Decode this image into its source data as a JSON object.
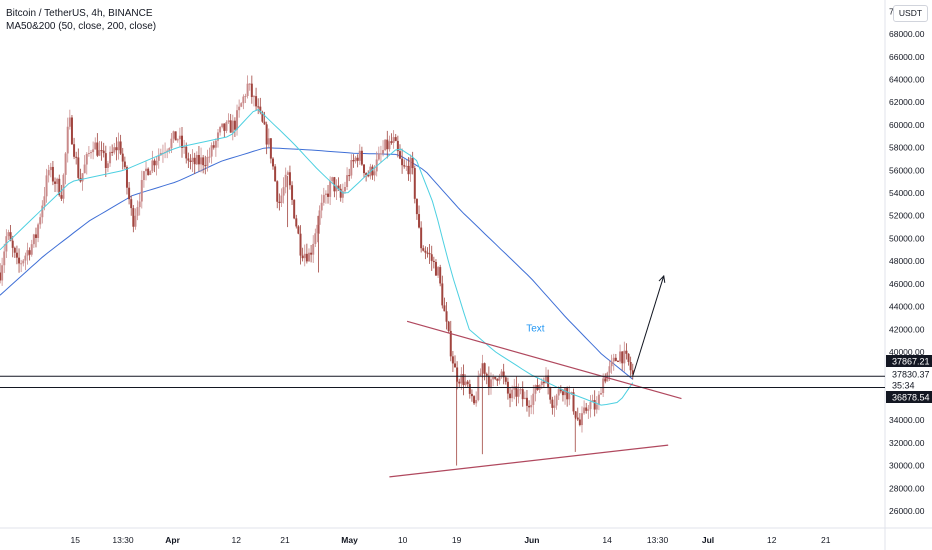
{
  "header": {
    "symbol_line": "Bitcoin / TetherUS, 4h, BINANCE",
    "indicator_line": "MA50&200 (50, close, 200, close)"
  },
  "unit_button": "USDT",
  "chart_data": {
    "type": "candlestick",
    "title": "Bitcoin / TetherUS, 4h, BINANCE",
    "indicator": "MA50&200 (50, close, 200, close)",
    "ylim": [
      24500,
      71000
    ],
    "y_ticks": [
      26000,
      28000,
      30000,
      32000,
      34000,
      36000,
      38000,
      40000,
      42000,
      44000,
      46000,
      48000,
      50000,
      52000,
      54000,
      56000,
      58000,
      60000,
      62000,
      64000,
      66000,
      68000,
      70000
    ],
    "y_tick_labels": [
      "26000.00",
      "28000.00",
      "30000.00",
      "32000.00",
      "34000.00",
      "36000.00",
      "38000.00",
      "40000.00",
      "42000.00",
      "44000.00",
      "46000.00",
      "48000.00",
      "50000.00",
      "52000.00",
      "54000.00",
      "56000.00",
      "58000.00",
      "60000.00",
      "62000.00",
      "64000.00",
      "66000.00",
      "68000.00",
      "70000.00"
    ],
    "x_ticks": [
      {
        "label": "15",
        "pos": 0.085,
        "bold": false
      },
      {
        "label": "13:30",
        "pos": 0.139,
        "bold": false
      },
      {
        "label": "Apr",
        "pos": 0.195,
        "bold": true
      },
      {
        "label": "12",
        "pos": 0.267,
        "bold": false
      },
      {
        "label": "21",
        "pos": 0.322,
        "bold": false
      },
      {
        "label": "May",
        "pos": 0.395,
        "bold": true
      },
      {
        "label": "10",
        "pos": 0.455,
        "bold": false
      },
      {
        "label": "19",
        "pos": 0.516,
        "bold": false
      },
      {
        "label": "Jun",
        "pos": 0.601,
        "bold": true
      },
      {
        "label": "14",
        "pos": 0.686,
        "bold": false
      },
      {
        "label": "13:30",
        "pos": 0.743,
        "bold": false
      },
      {
        "label": "Jul",
        "pos": 0.8,
        "bold": true
      },
      {
        "label": "12",
        "pos": 0.872,
        "bold": false
      },
      {
        "label": "21",
        "pos": 0.933,
        "bold": false
      }
    ],
    "price_anchors": [
      [
        0,
        47000
      ],
      [
        0.008,
        50500
      ],
      [
        0.02,
        47500
      ],
      [
        0.04,
        50000
      ],
      [
        0.055,
        56000
      ],
      [
        0.07,
        54000
      ],
      [
        0.078,
        60500
      ],
      [
        0.09,
        55000
      ],
      [
        0.105,
        58500
      ],
      [
        0.12,
        56500
      ],
      [
        0.135,
        58500
      ],
      [
        0.15,
        51500
      ],
      [
        0.165,
        56000
      ],
      [
        0.185,
        58000
      ],
      [
        0.2,
        59000
      ],
      [
        0.215,
        56500
      ],
      [
        0.235,
        57000
      ],
      [
        0.25,
        59500
      ],
      [
        0.265,
        60000
      ],
      [
        0.28,
        63500
      ],
      [
        0.29,
        61500
      ],
      [
        0.305,
        58000
      ],
      [
        0.315,
        53000
      ],
      [
        0.325,
        55500
      ],
      [
        0.34,
        49000
      ],
      [
        0.35,
        48500
      ],
      [
        0.36,
        52000
      ],
      [
        0.375,
        55000
      ],
      [
        0.385,
        53500
      ],
      [
        0.395,
        56000
      ],
      [
        0.405,
        57500
      ],
      [
        0.415,
        55500
      ],
      [
        0.425,
        56500
      ],
      [
        0.435,
        58000
      ],
      [
        0.445,
        58500
      ],
      [
        0.455,
        56000
      ],
      [
        0.465,
        56500
      ],
      [
        0.475,
        49500
      ],
      [
        0.485,
        48500
      ],
      [
        0.495,
        47000
      ],
      [
        0.505,
        42000
      ],
      [
        0.515,
        38000
      ],
      [
        0.525,
        37500
      ],
      [
        0.535,
        35000
      ],
      [
        0.545,
        39000
      ],
      [
        0.555,
        37000
      ],
      [
        0.565,
        38500
      ],
      [
        0.575,
        36000
      ],
      [
        0.585,
        36500
      ],
      [
        0.595,
        35500
      ],
      [
        0.605,
        36500
      ],
      [
        0.615,
        38000
      ],
      [
        0.625,
        35500
      ],
      [
        0.635,
        37000
      ],
      [
        0.645,
        36000
      ],
      [
        0.655,
        33500
      ],
      [
        0.665,
        35500
      ],
      [
        0.675,
        35000
      ],
      [
        0.68,
        37500
      ],
      [
        0.69,
        38500
      ],
      [
        0.7,
        40000
      ],
      [
        0.71,
        39000
      ],
      [
        0.715,
        37900
      ]
    ],
    "ma50_anchors": [
      [
        0.0,
        49000
      ],
      [
        0.08,
        55000
      ],
      [
        0.14,
        56000
      ],
      [
        0.2,
        58000
      ],
      [
        0.26,
        59000
      ],
      [
        0.29,
        61500
      ],
      [
        0.33,
        58500
      ],
      [
        0.36,
        56000
      ],
      [
        0.39,
        53800
      ],
      [
        0.42,
        56000
      ],
      [
        0.45,
        58000
      ],
      [
        0.47,
        57000
      ],
      [
        0.49,
        53000
      ],
      [
        0.51,
        47000
      ],
      [
        0.53,
        42000
      ],
      [
        0.56,
        40000
      ],
      [
        0.6,
        38000
      ],
      [
        0.64,
        36500
      ],
      [
        0.68,
        35300
      ],
      [
        0.7,
        35600
      ],
      [
        0.715,
        37300
      ]
    ],
    "ma200_anchors": [
      [
        0.0,
        45000
      ],
      [
        0.05,
        48500
      ],
      [
        0.1,
        51500
      ],
      [
        0.15,
        53800
      ],
      [
        0.2,
        55000
      ],
      [
        0.25,
        56800
      ],
      [
        0.3,
        58000
      ],
      [
        0.35,
        57800
      ],
      [
        0.4,
        57500
      ],
      [
        0.45,
        57400
      ],
      [
        0.48,
        56000
      ],
      [
        0.52,
        52500
      ],
      [
        0.56,
        49500
      ],
      [
        0.6,
        46500
      ],
      [
        0.64,
        43000
      ],
      [
        0.68,
        39800
      ],
      [
        0.715,
        37600
      ]
    ],
    "trendline_upper": {
      "from": [
        0.46,
        42700
      ],
      "to": [
        0.77,
        35900
      ]
    },
    "trendline_lower": {
      "from": [
        0.44,
        29000
      ],
      "to": [
        0.755,
        31800
      ]
    },
    "horizontal_lines": [
      37867.21,
      36878.54
    ],
    "projection_arrow": {
      "from": [
        0.715,
        37900
      ],
      "to": [
        0.75,
        46700
      ]
    },
    "annotation": {
      "text": "Text",
      "at": [
        0.605,
        41800
      ]
    },
    "price_labels": [
      {
        "text": "37867.21",
        "bg": "#131722",
        "fg": "#ffffff"
      },
      {
        "text": "37830.37",
        "bg": "#ffffff",
        "fg": "#131722"
      },
      {
        "text": "35:34",
        "bg": "#ffffff",
        "fg": "#131722"
      },
      {
        "text": "36878.54",
        "bg": "#131722",
        "fg": "#ffffff"
      }
    ],
    "colors": {
      "up": "#26a69a",
      "down": "#ef5350",
      "candle": "#b45f5f",
      "ma50": "#4dd0e1",
      "ma200": "#3f6fd6",
      "trendline": "#b0485e",
      "hline": "#131722",
      "arrow": "#131722",
      "annotation": "#2196f3"
    }
  }
}
